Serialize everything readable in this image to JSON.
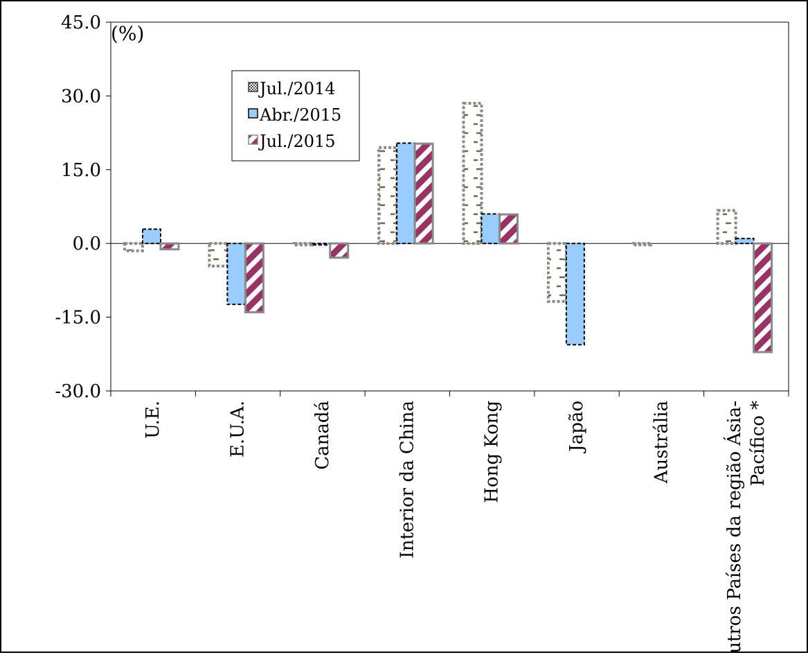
{
  "chart_data": {
    "type": "bar",
    "title": "",
    "xlabel": "",
    "ylabel": "",
    "unit_label": "(%)",
    "ylim": [
      -30,
      45
    ],
    "yticks": [
      "45.0",
      "30.0",
      "15.0",
      "0.0",
      "-15.0",
      "-30.0"
    ],
    "ytick_values": [
      45,
      30,
      15,
      0,
      -15,
      -30
    ],
    "grid": false,
    "legend_position": "top-left",
    "categories": [
      "U.E.",
      "E.U.A.",
      "Canadá",
      "Interior da China",
      "Hong Kong",
      "Japão",
      "Austrália",
      "Outros Países da região Ásia-Pacífico *"
    ],
    "category_lines": [
      [
        "U.E."
      ],
      [
        "E.U.A."
      ],
      [
        "Canadá"
      ],
      [
        "Interior da China"
      ],
      [
        "Hong Kong"
      ],
      [
        "Japão"
      ],
      [
        "Austrália"
      ],
      [
        "Outros Países da região Ásia-",
        "Pacífico *"
      ]
    ],
    "series": [
      {
        "name": "Jul./2014",
        "values": [
          -1.5,
          -4.6,
          -0.3,
          19.5,
          28.5,
          -11.8,
          -0.3,
          6.7
        ],
        "color": "#6b6b3a"
      },
      {
        "name": "Abr./2015",
        "values": [
          2.9,
          -12.4,
          -0.3,
          20.4,
          6.0,
          -20.6,
          0.0,
          1.0
        ],
        "color": "#99ccff"
      },
      {
        "name": "Jul./2015",
        "values": [
          -1.2,
          -14.0,
          -2.9,
          20.3,
          5.9,
          0.0,
          0.0,
          -22.1
        ],
        "color": "#993366"
      }
    ]
  }
}
